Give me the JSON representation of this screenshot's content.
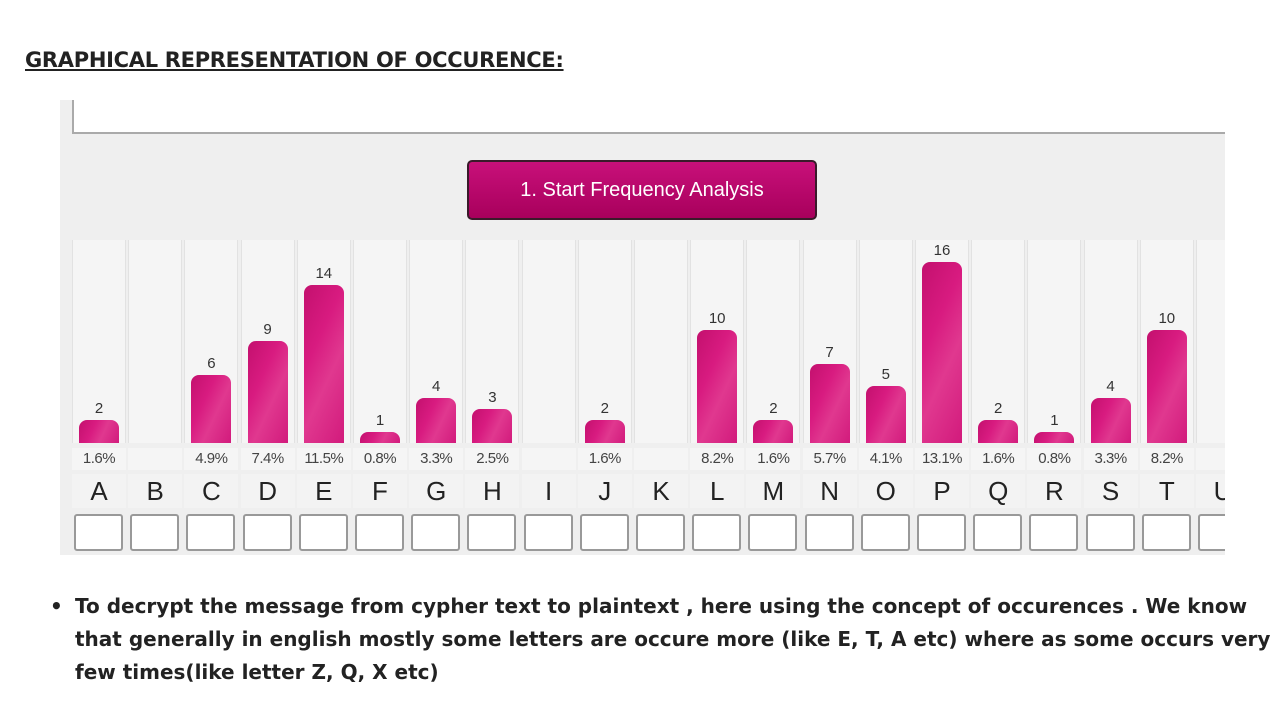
{
  "heading": "GRAPHICAL REPRESENTATION OF OCCURENCE:",
  "button_label": "1. Start Frequency Analysis",
  "chart_data": {
    "type": "bar",
    "categories": [
      "A",
      "B",
      "C",
      "D",
      "E",
      "F",
      "G",
      "H",
      "I",
      "J",
      "K",
      "L",
      "M",
      "N",
      "O",
      "P",
      "Q",
      "R",
      "S",
      "T",
      "U"
    ],
    "values": [
      2,
      0,
      6,
      9,
      14,
      1,
      4,
      3,
      0,
      2,
      0,
      10,
      2,
      7,
      5,
      16,
      2,
      1,
      4,
      10,
      null
    ],
    "percentages": [
      "1.6%",
      "",
      "4.9%",
      "7.4%",
      "11.5%",
      "0.8%",
      "3.3%",
      "2.5%",
      "",
      "1.6%",
      "",
      "8.2%",
      "1.6%",
      "5.7%",
      "4.1%",
      "13.1%",
      "1.6%",
      "0.8%",
      "3.3%",
      "8.2%",
      ""
    ],
    "bar_color": "#d81b80",
    "ylim": [
      0,
      16
    ]
  },
  "note": {
    "bullet": "•",
    "text": "To decrypt the message from cypher text to plaintext , here using the concept of occurences . We know that generally in english mostly some letters are occure more (like E, T, A etc) where as some occurs very few times(like letter Z, Q, X etc)"
  }
}
